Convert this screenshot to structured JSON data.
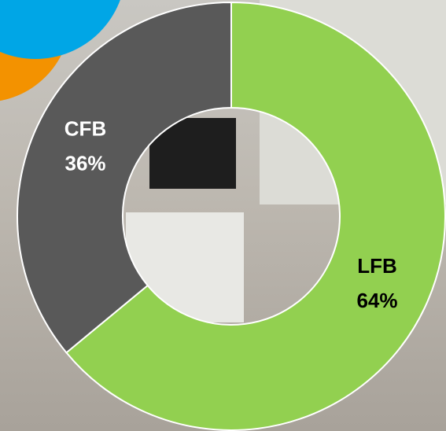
{
  "chart_data": {
    "type": "donut",
    "categories": [
      "LFB",
      "CFB"
    ],
    "values": [
      64,
      36
    ],
    "value_labels": [
      "64%",
      "36%"
    ],
    "colors": [
      "#92d050",
      "#595959"
    ],
    "label_colors": [
      "#000000",
      "#ffffff"
    ]
  }
}
